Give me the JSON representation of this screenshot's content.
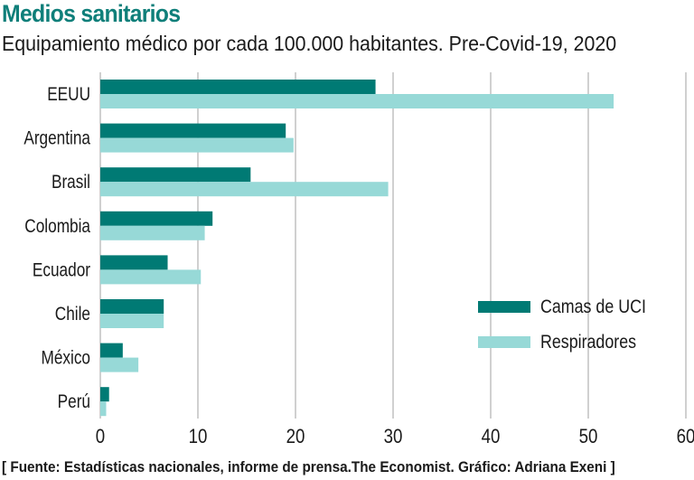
{
  "header": {
    "title": "Medios sanitarios",
    "subtitle": "Equipamiento médico por cada 100.000 habitantes. Pre-Covid-19, 2020"
  },
  "footer": {
    "source": "[ Fuente: Estadísticas nacionales, informe de prensa.The Economist. Gráfico: Adriana Exeni ]"
  },
  "colors": {
    "title": "#0f7f7a",
    "camas": "#007a74",
    "respiradores": "#97d9d7",
    "grid": "#b0b0b0",
    "text": "#1a1a1a"
  },
  "chart_data": {
    "type": "bar",
    "orientation": "horizontal",
    "title": "Medios sanitarios",
    "subtitle": "Equipamiento médico por cada 100.000 habitantes. Pre-Covid-19, 2020",
    "xlabel": "",
    "ylabel": "",
    "categories": [
      "EEUU",
      "Argentina",
      "Brasil",
      "Colombia",
      "Ecuador",
      "Chile",
      "México",
      "Perú"
    ],
    "series": [
      {
        "name": "Camas de UCI",
        "values": [
          28.2,
          19.0,
          15.4,
          11.5,
          6.9,
          6.5,
          2.3,
          0.9
        ]
      },
      {
        "name": "Respiradores",
        "values": [
          52.6,
          19.8,
          29.5,
          10.7,
          10.3,
          6.5,
          3.9,
          0.6
        ]
      }
    ],
    "xlim": [
      0,
      60
    ],
    "xticks": [
      0,
      10,
      20,
      30,
      40,
      50,
      60
    ],
    "grid": true,
    "legend_position": "right-lower"
  }
}
